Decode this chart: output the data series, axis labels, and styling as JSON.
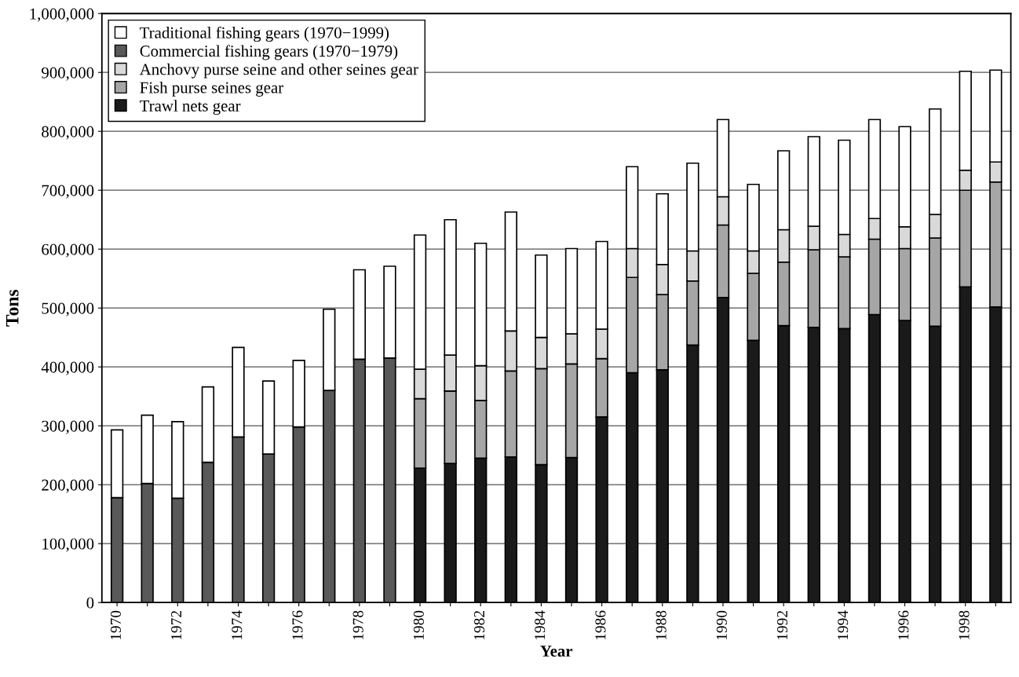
{
  "chart_data": {
    "type": "bar",
    "stacked": true,
    "xlabel": "Year",
    "ylabel": "Tons",
    "categories": [
      "1970",
      null,
      "1972",
      null,
      "1974",
      null,
      "1976",
      null,
      "1978",
      null,
      "1980",
      null,
      "1982",
      null,
      "1984",
      null,
      "1986",
      null,
      "1988",
      null,
      "1990",
      null,
      "1992",
      null,
      "1994",
      null,
      "1996",
      null,
      "1998",
      null
    ],
    "ylim": [
      0,
      1000000
    ],
    "yticks": [
      {
        "value": 0,
        "label": "0"
      },
      {
        "value": 100000,
        "label": "100,000"
      },
      {
        "value": 200000,
        "label": "200,000"
      },
      {
        "value": 300000,
        "label": "300,000"
      },
      {
        "value": 400000,
        "label": "400,000"
      },
      {
        "value": 500000,
        "label": "500,000"
      },
      {
        "value": 600000,
        "label": "600,000"
      },
      {
        "value": 700000,
        "label": "700,000"
      },
      {
        "value": 800000,
        "label": "800,000"
      },
      {
        "value": 900000,
        "label": "900,000"
      },
      {
        "value": 1000000,
        "label": "1,000,000"
      }
    ],
    "grid": "y",
    "legend": "top left",
    "series": [
      {
        "name": "Trawl nets gear",
        "color": "#1a1a1a",
        "values": [
          null,
          null,
          null,
          null,
          null,
          null,
          null,
          null,
          null,
          null,
          228000,
          236000,
          245000,
          247000,
          234000,
          246000,
          315000,
          390000,
          395000,
          437000,
          518000,
          445000,
          470000,
          467000,
          465000,
          489000,
          479000,
          469000,
          536000,
          502000
        ]
      },
      {
        "name": "Fish purse seines gear",
        "color": "#a6a6a6",
        "values": [
          null,
          null,
          null,
          null,
          null,
          null,
          null,
          null,
          null,
          null,
          118000,
          123000,
          98000,
          146000,
          163000,
          159000,
          99000,
          162000,
          128000,
          109000,
          123000,
          114000,
          108000,
          132000,
          122000,
          128000,
          122000,
          150000,
          164000,
          212000
        ]
      },
      {
        "name": "Anchovy purse seine and other seines gear",
        "color": "#d9d9d9",
        "values": [
          null,
          null,
          null,
          null,
          null,
          null,
          null,
          null,
          null,
          null,
          50000,
          61000,
          59000,
          68000,
          53000,
          51000,
          50000,
          49000,
          51000,
          51000,
          48000,
          38000,
          55000,
          40000,
          38000,
          35000,
          37000,
          40000,
          34000,
          34000
        ]
      },
      {
        "name": "Commercial fishing gears (1970−1979)",
        "color": "#595959",
        "values": [
          178000,
          202000,
          177000,
          238000,
          281000,
          252000,
          298000,
          360000,
          413000,
          415000,
          null,
          null,
          null,
          null,
          null,
          null,
          null,
          null,
          null,
          null,
          null,
          null,
          null,
          null,
          null,
          null,
          null,
          null,
          null,
          null
        ]
      },
      {
        "name": "Traditional fishing gears (1970−1999)",
        "color": "#ffffff",
        "values": [
          115000,
          116000,
          130000,
          128000,
          152000,
          124000,
          113000,
          138000,
          152000,
          156000,
          228000,
          230000,
          208000,
          202000,
          140000,
          145000,
          149000,
          139000,
          120000,
          149000,
          131000,
          113000,
          134000,
          152000,
          160000,
          168000,
          170000,
          179000,
          168000,
          156000
        ]
      }
    ]
  }
}
